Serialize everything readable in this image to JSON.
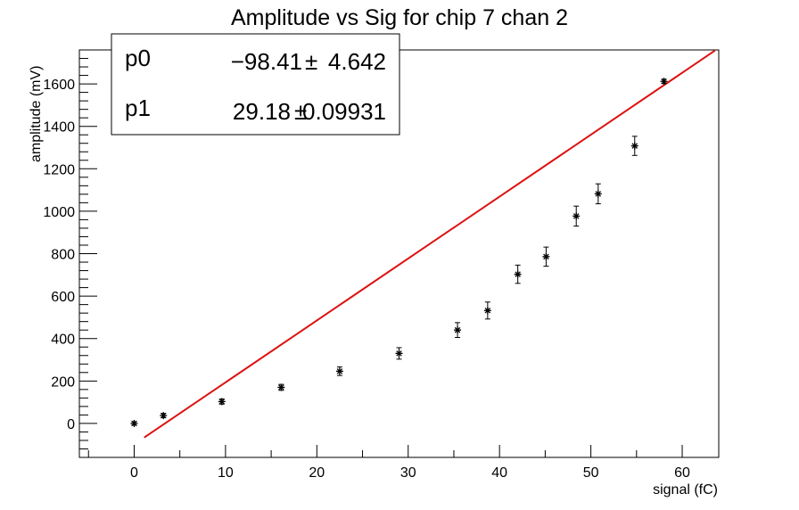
{
  "chart_data": {
    "type": "scatter",
    "title": "Amplitude vs Sig for chip 7 chan 2",
    "xlabel": "signal (fC)",
    "ylabel": "amplitude (mV)",
    "xlim": [
      -6,
      64
    ],
    "ylim": [
      -160,
      1760
    ],
    "x_ticks": [
      0,
      10,
      20,
      30,
      40,
      50,
      60
    ],
    "y_ticks": [
      0,
      200,
      400,
      600,
      800,
      1000,
      1200,
      1400,
      1600
    ],
    "grid": false,
    "series": [
      {
        "type": "points-with-errors",
        "x": [
          0,
          3.2,
          9.6,
          16.1,
          22.5,
          29.0,
          35.4,
          38.7,
          42.0,
          45.1,
          48.4,
          50.8,
          54.8,
          58.0
        ],
        "y": [
          0,
          37,
          103,
          170,
          246,
          330,
          440,
          532,
          703,
          786,
          977,
          1082,
          1308,
          1612
        ],
        "err": [
          8,
          10,
          12,
          14,
          20,
          27,
          35,
          40,
          43,
          45,
          47,
          47,
          45,
          10
        ],
        "color": "#000000"
      },
      {
        "type": "fit-line",
        "p0": -98.41,
        "p1": 29.18,
        "x_range": [
          1.1,
          63.6
        ],
        "color": "#dd1111"
      }
    ],
    "stats_box": {
      "rows": [
        {
          "name": "p0",
          "value": "−98.41",
          "pm": "±",
          "error": "4.642"
        },
        {
          "name": "p1",
          "value": "29.18",
          "pm": "±",
          "error": "0.09931"
        }
      ],
      "placement": "top-left"
    }
  }
}
